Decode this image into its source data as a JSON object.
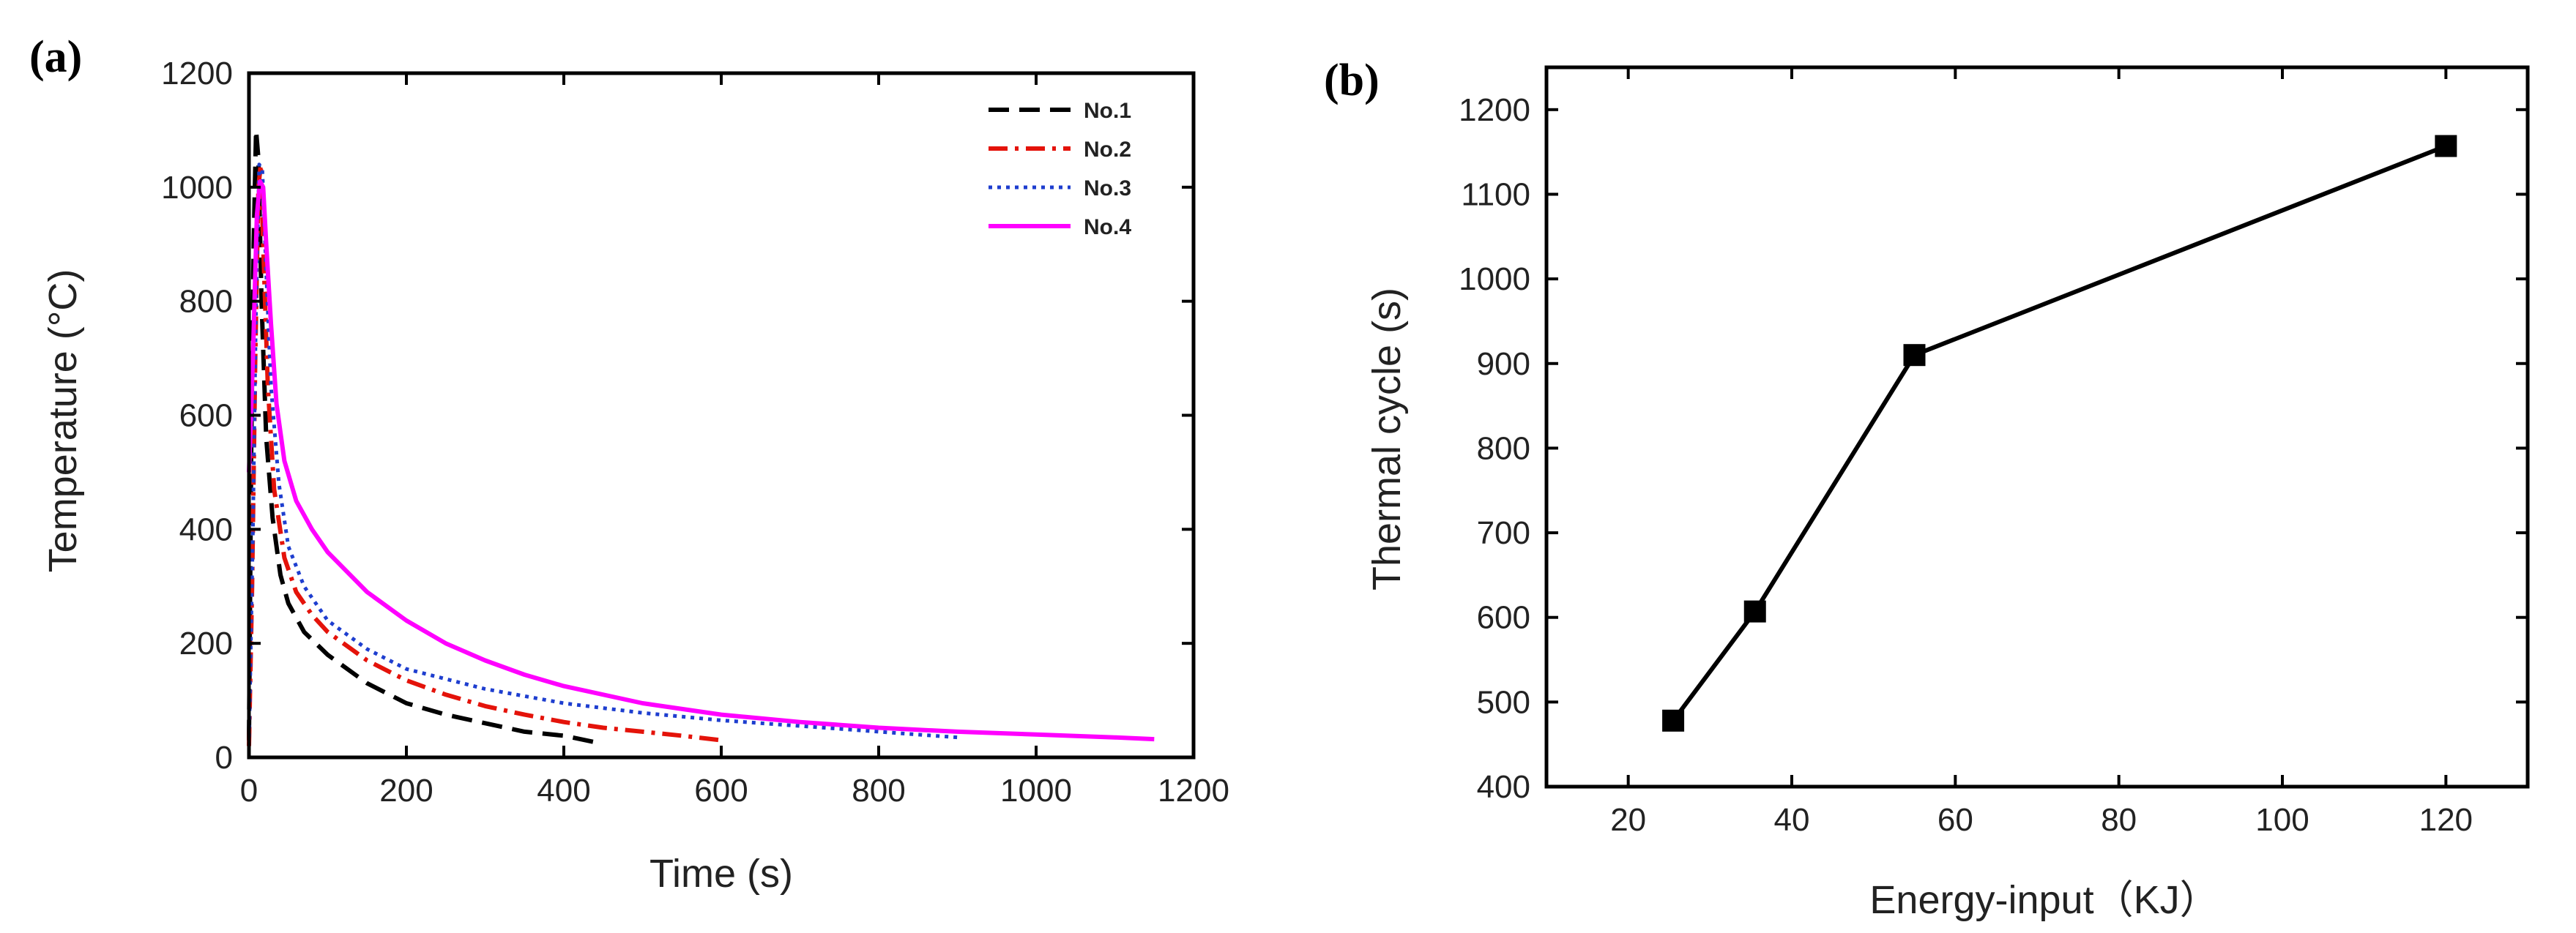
{
  "chart_data": [
    {
      "panel_label": "(a)",
      "type": "line",
      "title": "",
      "xlabel": "Time (s)",
      "ylabel": "Temperature (°C)",
      "xlim": [
        0,
        1200
      ],
      "ylim": [
        0,
        1200
      ],
      "xticks": [
        0,
        200,
        400,
        600,
        800,
        1000,
        1200
      ],
      "yticks": [
        0,
        200,
        400,
        600,
        800,
        1000,
        1200
      ],
      "grid": false,
      "legend": "top-right",
      "series": [
        {
          "name": "No.1",
          "color": "#000000",
          "style": "dashed",
          "points": [
            [
              0,
              30
            ],
            [
              3,
              550
            ],
            [
              6,
              900
            ],
            [
              9,
              1100
            ],
            [
              12,
              1050
            ],
            [
              16,
              800
            ],
            [
              22,
              560
            ],
            [
              30,
              420
            ],
            [
              40,
              320
            ],
            [
              50,
              270
            ],
            [
              70,
              220
            ],
            [
              100,
              180
            ],
            [
              150,
              130
            ],
            [
              200,
              95
            ],
            [
              250,
              75
            ],
            [
              300,
              60
            ],
            [
              350,
              45
            ],
            [
              400,
              38
            ],
            [
              445,
              25
            ]
          ]
        },
        {
          "name": "No.2",
          "color": "#e4130a",
          "style": "dashdot",
          "points": [
            [
              0,
              20
            ],
            [
              4,
              300
            ],
            [
              8,
              700
            ],
            [
              12,
              1000
            ],
            [
              15,
              1040
            ],
            [
              18,
              900
            ],
            [
              24,
              650
            ],
            [
              32,
              470
            ],
            [
              45,
              350
            ],
            [
              60,
              290
            ],
            [
              80,
              250
            ],
            [
              100,
              220
            ],
            [
              150,
              170
            ],
            [
              200,
              135
            ],
            [
              250,
              110
            ],
            [
              300,
              90
            ],
            [
              350,
              75
            ],
            [
              400,
              62
            ],
            [
              450,
              52
            ],
            [
              500,
              45
            ],
            [
              550,
              38
            ],
            [
              600,
              30
            ]
          ]
        },
        {
          "name": "No.3",
          "color": "#1e3ecf",
          "style": "dotted",
          "points": [
            [
              0,
              20
            ],
            [
              5,
              400
            ],
            [
              9,
              800
            ],
            [
              13,
              1040
            ],
            [
              17,
              1030
            ],
            [
              22,
              850
            ],
            [
              28,
              650
            ],
            [
              38,
              480
            ],
            [
              50,
              370
            ],
            [
              70,
              300
            ],
            [
              100,
              240
            ],
            [
              150,
              190
            ],
            [
              200,
              155
            ],
            [
              300,
              120
            ],
            [
              400,
              95
            ],
            [
              500,
              78
            ],
            [
              600,
              65
            ],
            [
              700,
              55
            ],
            [
              800,
              45
            ],
            [
              900,
              35
            ]
          ]
        },
        {
          "name": "No.4",
          "color": "#ff00ff",
          "style": "solid",
          "points": [
            [
              0,
              500
            ],
            [
              5,
              700
            ],
            [
              10,
              950
            ],
            [
              14,
              1010
            ],
            [
              18,
              1000
            ],
            [
              22,
              900
            ],
            [
              28,
              760
            ],
            [
              35,
              620
            ],
            [
              45,
              520
            ],
            [
              60,
              450
            ],
            [
              80,
              400
            ],
            [
              100,
              360
            ],
            [
              150,
              290
            ],
            [
              200,
              240
            ],
            [
              250,
              200
            ],
            [
              300,
              170
            ],
            [
              350,
              145
            ],
            [
              400,
              125
            ],
            [
              500,
              95
            ],
            [
              600,
              75
            ],
            [
              700,
              62
            ],
            [
              800,
              52
            ],
            [
              900,
              45
            ],
            [
              1000,
              40
            ],
            [
              1100,
              35
            ],
            [
              1150,
              32
            ]
          ]
        }
      ]
    },
    {
      "panel_label": "(b)",
      "type": "line",
      "title": "",
      "xlabel": "Energy-input（KJ）",
      "ylabel": "Thermal cycle (s)",
      "xlim": [
        10,
        130
      ],
      "ylim": [
        400,
        1250
      ],
      "xticks": [
        20,
        40,
        60,
        80,
        100,
        120
      ],
      "yticks": [
        400,
        500,
        600,
        700,
        800,
        900,
        1000,
        1100,
        1200
      ],
      "grid": false,
      "legend": "none",
      "series": [
        {
          "color": "#000000",
          "style": "solid",
          "marker": "square",
          "points": [
            [
              25.5,
              478
            ],
            [
              35.5,
              607
            ],
            [
              55,
              910
            ],
            [
              120,
              1157
            ]
          ]
        }
      ]
    }
  ]
}
